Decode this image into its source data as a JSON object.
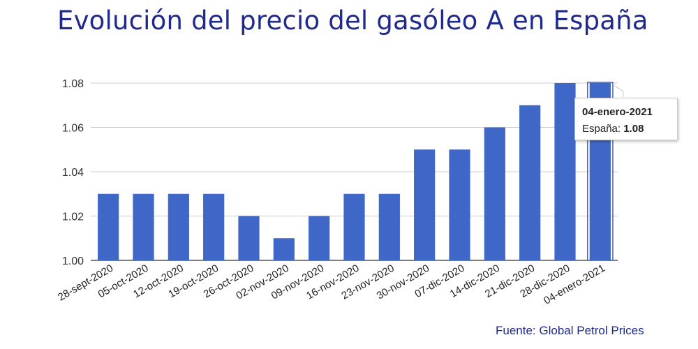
{
  "title": "Evolución del precio del gasóleo A en España",
  "source": "Fuente: Global Petrol Prices",
  "tooltip": {
    "date": "04-enero-2021",
    "series_label": "España:",
    "value": "1.08"
  },
  "colors": {
    "bar": "#3f67c8",
    "title": "#1f2a8c",
    "grid": "#cccccc",
    "axis": "#333333"
  },
  "chart_data": {
    "type": "bar",
    "title": "Evolución del precio del gasóleo A en España",
    "xlabel": "",
    "ylabel": "",
    "categories": [
      "28-sept-2020",
      "05-oct-2020",
      "12-oct-2020",
      "19-oct-2020",
      "26-oct-2020",
      "02-nov-2020",
      "09-nov-2020",
      "16-nov-2020",
      "23-nov-2020",
      "30-nov-2020",
      "07-dic-2020",
      "14-dic-2020",
      "21-dic-2020",
      "28-dic-2020",
      "04-enero-2021"
    ],
    "series": [
      {
        "name": "España",
        "values": [
          1.03,
          1.03,
          1.03,
          1.03,
          1.02,
          1.01,
          1.02,
          1.03,
          1.03,
          1.05,
          1.05,
          1.06,
          1.07,
          1.08,
          1.08
        ]
      }
    ],
    "ylim": [
      1.0,
      1.08
    ],
    "yticks": [
      "1.00",
      "1.02",
      "1.04",
      "1.06",
      "1.08"
    ],
    "highlighted_category": "04-enero-2021",
    "grid": true,
    "legend": "none"
  }
}
